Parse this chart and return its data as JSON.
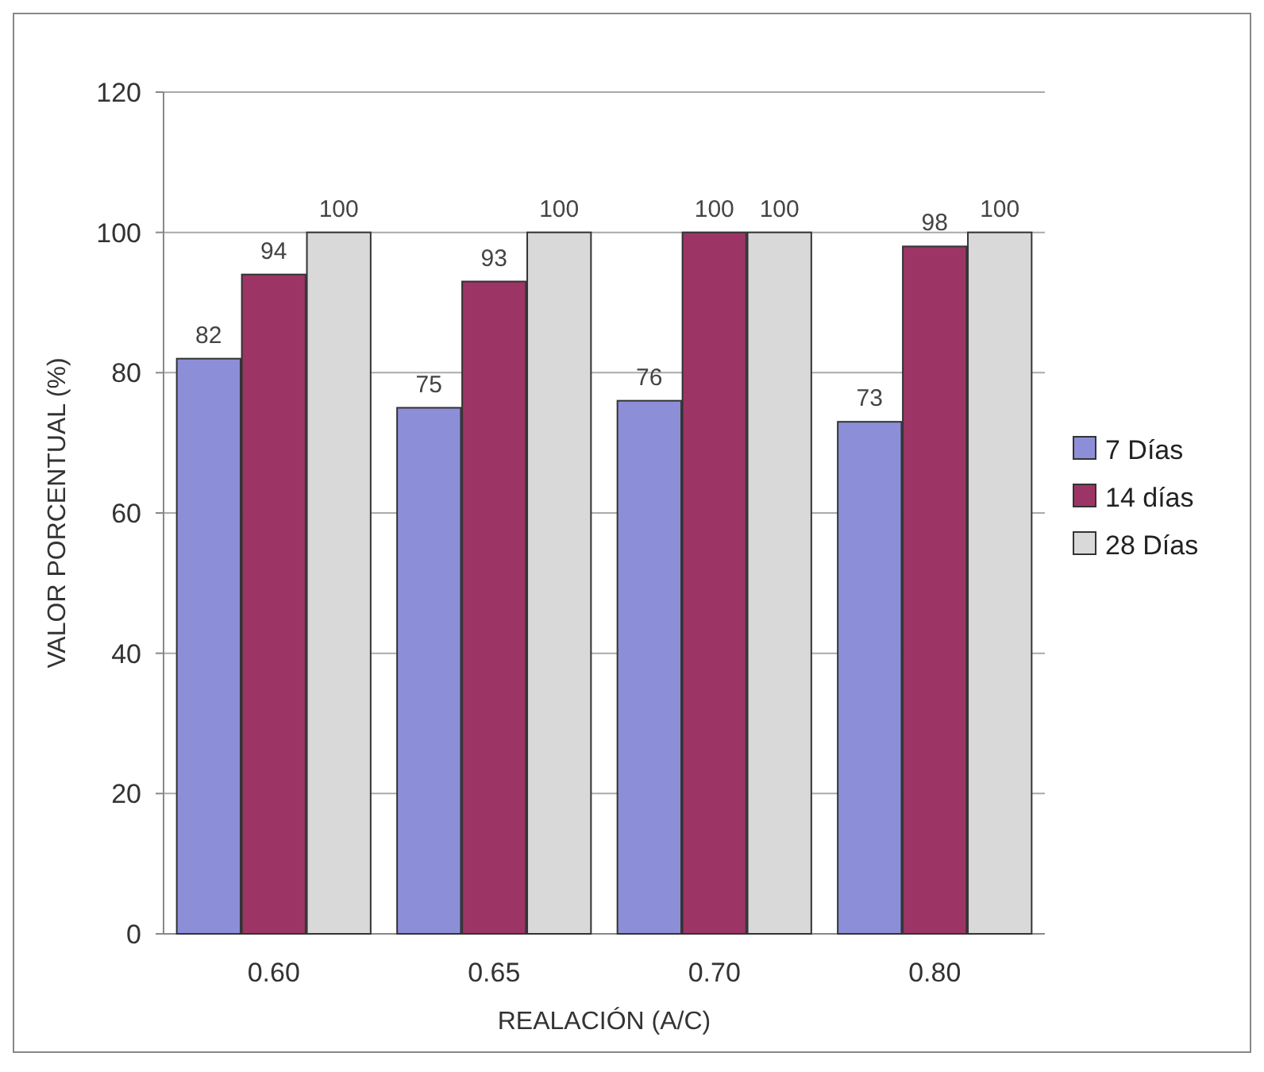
{
  "chart_data": {
    "type": "bar",
    "xlabel": "REALACIÓN (A/C)",
    "ylabel": "VALOR PORCENTUAL (%)",
    "categories": [
      "0.60",
      "0.65",
      "0.70",
      "0.80"
    ],
    "series": [
      {
        "name": "7 Días",
        "color": "#8c8fd8",
        "values": [
          82,
          75,
          76,
          73
        ]
      },
      {
        "name": "14 días",
        "color": "#9c3566",
        "values": [
          94,
          93,
          100,
          98
        ]
      },
      {
        "name": "28 Días",
        "color": "#d9d9d9",
        "values": [
          100,
          100,
          100,
          100
        ]
      }
    ],
    "ylim": [
      0,
      120
    ],
    "yticks": [
      0,
      20,
      40,
      60,
      80,
      100,
      120
    ],
    "grid": "y",
    "legend": "right",
    "data_labels": true
  }
}
